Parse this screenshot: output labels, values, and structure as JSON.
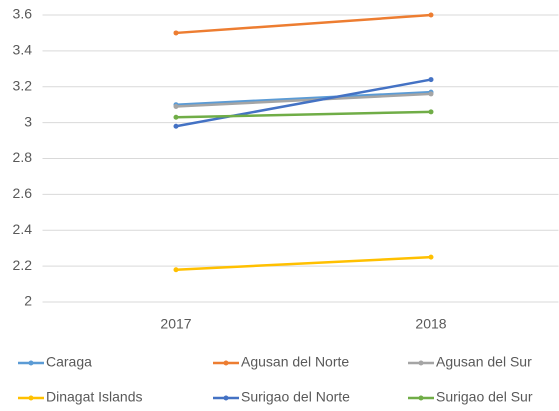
{
  "chart_data": {
    "type": "line",
    "categories": [
      "2017",
      "2018"
    ],
    "series": [
      {
        "name": "Caraga",
        "color": "#5b9bd5",
        "values": [
          3.1,
          3.17
        ]
      },
      {
        "name": "Agusan del Norte",
        "color": "#ed7d31",
        "values": [
          3.5,
          3.6
        ]
      },
      {
        "name": "Agusan del Sur",
        "color": "#a5a5a5",
        "values": [
          3.09,
          3.16
        ]
      },
      {
        "name": "Dinagat Islands",
        "color": "#ffc000",
        "values": [
          2.18,
          2.25
        ]
      },
      {
        "name": "Surigao del Norte",
        "color": "#4472c4",
        "values": [
          2.98,
          3.24
        ]
      },
      {
        "name": "Surigao del Sur",
        "color": "#70ad47",
        "values": [
          3.03,
          3.06
        ]
      }
    ],
    "ylim": [
      2,
      3.6
    ],
    "yticks": [
      2,
      2.2,
      2.4,
      2.6,
      2.8,
      3,
      3.2,
      3.4,
      3.6
    ],
    "grid": true,
    "legend": "bottom"
  }
}
